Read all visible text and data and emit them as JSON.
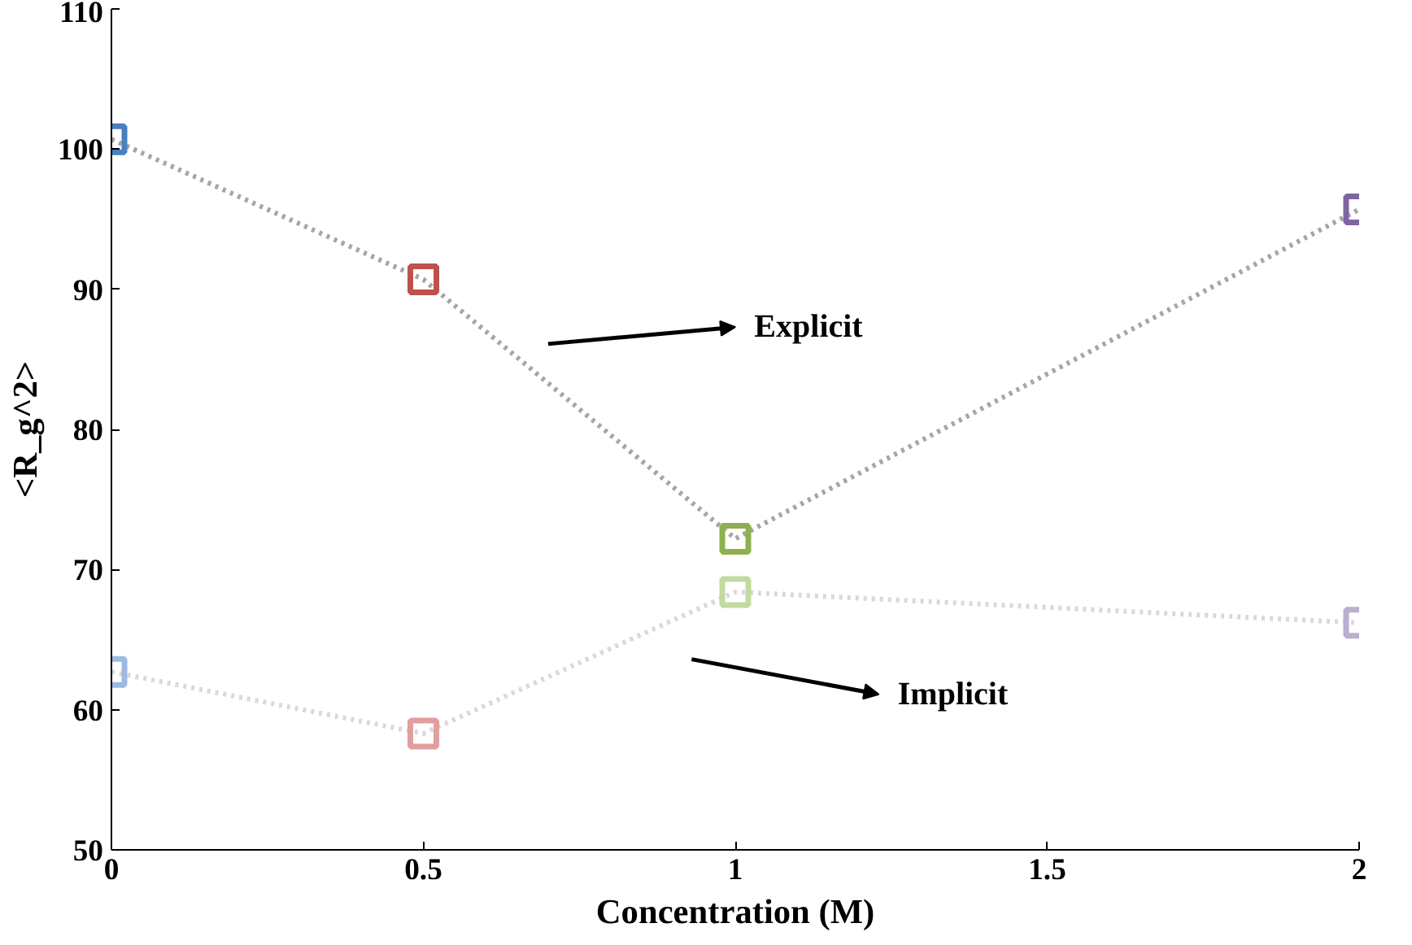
{
  "chart_data": {
    "type": "line",
    "xlabel": "Concentration (M)",
    "ylabel": "<R_g^2>",
    "x": [
      0,
      0.5,
      1,
      2
    ],
    "series": [
      {
        "color": "#a6a6a6",
        "colors": [
          "#4a7fc1",
          "#c0504d",
          "#8db050",
          "#8064a2"
        ],
        "values": [
          100.7,
          90.7,
          72.2,
          95.7
        ]
      },
      {
        "color": "#d9d9d9",
        "colors": [
          "#9dbbe0",
          "#e0a09f",
          "#c3d9a0",
          "#bcaecf"
        ],
        "values": [
          62.7,
          58.3,
          68.4,
          66.2
        ]
      }
    ],
    "xlim": [
      0,
      2
    ],
    "ylim": [
      50,
      110
    ],
    "xticks": [
      0,
      0.5,
      1,
      1.5,
      2
    ],
    "yticks": [
      50,
      60,
      70,
      80,
      90,
      100,
      110
    ],
    "marker": "square",
    "line_style": "dotted",
    "grid": false,
    "annotations": [
      "Explicit",
      "Implicit"
    ]
  }
}
